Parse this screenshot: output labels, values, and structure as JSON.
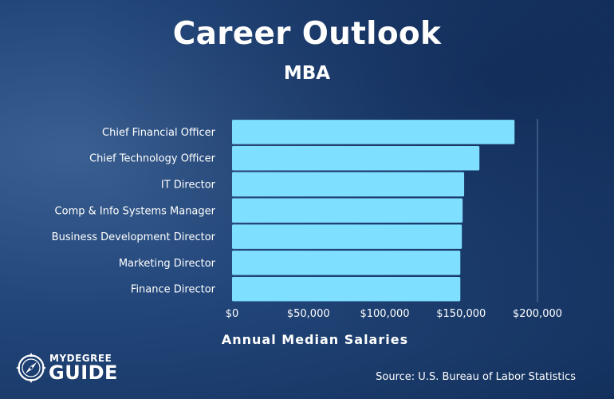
{
  "colors": {
    "bar": "#7fdfff",
    "text": "#ffffff",
    "axis_line": "#6d8cb4"
  },
  "brand": {
    "top": "MYDEGREE",
    "bottom": "GUIDE",
    "icon": "compass-icon"
  },
  "source": "Source: U.S. Bureau of Labor Statistics",
  "chart_data": {
    "type": "bar",
    "orientation": "horizontal",
    "title": "Career Outlook",
    "subtitle": "MBA",
    "xlabel": "Annual Median Salaries",
    "ylabel": "",
    "categories": [
      "Chief Financial Officer",
      "Chief Technology Officer",
      "IT Director",
      "Comp & Info Systems Manager",
      "Business Development Director",
      "Marketing Director",
      "Finance Director"
    ],
    "values": [
      185000,
      162000,
      152000,
      151000,
      150500,
      149500,
      149500
    ],
    "xlim": [
      0,
      200000
    ],
    "xticks": [
      0,
      50000,
      100000,
      150000,
      200000
    ],
    "xtick_labels": [
      "$0",
      "$50,000",
      "$100,000",
      "$150,000",
      "$200,000"
    ],
    "grid": false,
    "legend": "none"
  }
}
